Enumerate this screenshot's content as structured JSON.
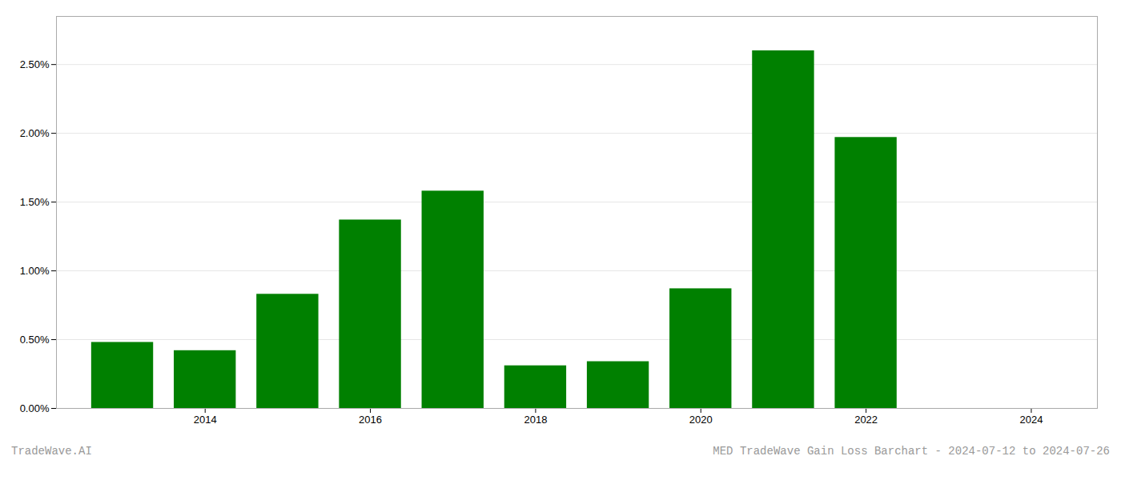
{
  "chart_data": {
    "type": "bar",
    "title": "MED TradeWave Gain Loss Barchart - 2024-07-12 to 2024-07-26",
    "annotations": [
      "TradeWave.AI"
    ],
    "x": [
      2013,
      2014,
      2015,
      2016,
      2017,
      2018,
      2019,
      2020,
      2021,
      2022,
      2023
    ],
    "values": [
      0.0048,
      0.0042,
      0.0083,
      0.0137,
      0.0158,
      0.0031,
      0.0034,
      0.0087,
      0.026,
      0.0197,
      0.0
    ],
    "color": "#008000",
    "xlim": [
      2012.2,
      2024.8
    ],
    "xticks": [
      2014,
      2016,
      2018,
      2020,
      2022,
      2024
    ],
    "ylim": [
      0,
      0.0285
    ],
    "yticks": [
      {
        "value": 0.0,
        "label": "0.00%"
      },
      {
        "value": 0.005,
        "label": "0.50%"
      },
      {
        "value": 0.01,
        "label": "1.00%"
      },
      {
        "value": 0.015,
        "label": "1.50%"
      },
      {
        "value": 0.02,
        "label": "2.00%"
      },
      {
        "value": 0.025,
        "label": "2.50%"
      }
    ],
    "grid": true
  }
}
